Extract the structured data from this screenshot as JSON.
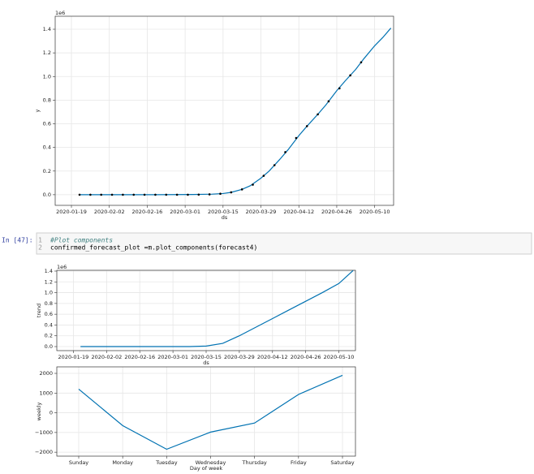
{
  "notebook": {
    "prompt": "In [47]:",
    "code_lines": [
      {
        "number": 1,
        "text": "#Plot components"
      },
      {
        "number": 2,
        "text": "confirmed_forecast_plot =m.plot_components(forecast4)"
      }
    ]
  },
  "chart_data": [
    {
      "type": "line",
      "offset_text": "1e6",
      "xlabel": "ds",
      "ylabel": "y",
      "grid": true,
      "xlim": [
        "2020-01-13",
        "2020-05-17"
      ],
      "ylim": [
        -0.09,
        1.51
      ],
      "xticks": [
        "2020-01-19",
        "2020-02-02",
        "2020-02-16",
        "2020-03-01",
        "2020-03-15",
        "2020-03-29",
        "2020-04-12",
        "2020-04-26",
        "2020-05-10"
      ],
      "yticks": [
        {
          "value": 0,
          "label": "0.0"
        },
        0.2,
        0.4,
        0.6,
        0.8,
        {
          "value": 1,
          "label": "1.0"
        },
        1.2,
        1.4
      ],
      "series": [
        {
          "type": "line",
          "color": "#0072B2",
          "x": [
            "2020-01-22",
            "2020-02-05",
            "2020-02-19",
            "2020-03-04",
            "2020-03-11",
            "2020-03-15",
            "2020-03-18",
            "2020-03-22",
            "2020-03-25",
            "2020-03-29",
            "2020-04-01",
            "2020-04-05",
            "2020-04-08",
            "2020-04-12",
            "2020-04-15",
            "2020-04-19",
            "2020-04-22",
            "2020-04-26",
            "2020-04-29",
            "2020-05-03",
            "2020-05-06",
            "2020-05-10",
            "2020-05-13",
            "2020-05-16"
          ],
          "values": [
            0,
            0,
            0,
            0.002,
            0.005,
            0.01,
            0.02,
            0.045,
            0.075,
            0.14,
            0.2,
            0.3,
            0.38,
            0.5,
            0.58,
            0.68,
            0.76,
            0.88,
            0.96,
            1.06,
            1.15,
            1.26,
            1.33,
            1.41
          ]
        },
        {
          "type": "scatter",
          "color": "#000000",
          "x": [
            "2020-01-22",
            "2020-01-26",
            "2020-01-30",
            "2020-02-03",
            "2020-02-07",
            "2020-02-11",
            "2020-02-15",
            "2020-02-19",
            "2020-02-23",
            "2020-02-27",
            "2020-03-02",
            "2020-03-06",
            "2020-03-10",
            "2020-03-14",
            "2020-03-18",
            "2020-03-22",
            "2020-03-26",
            "2020-03-30",
            "2020-04-03",
            "2020-04-07",
            "2020-04-11",
            "2020-04-15",
            "2020-04-19",
            "2020-04-23",
            "2020-04-27",
            "2020-05-01",
            "2020-05-05"
          ],
          "values": [
            0,
            0,
            0,
            0,
            0,
            0,
            0,
            0,
            0,
            0,
            0,
            0.001,
            0.003,
            0.008,
            0.02,
            0.045,
            0.085,
            0.16,
            0.25,
            0.36,
            0.48,
            0.58,
            0.68,
            0.79,
            0.9,
            1.01,
            1.12
          ]
        }
      ]
    },
    {
      "type": "line",
      "offset_text": "1e6",
      "xlabel": "ds",
      "ylabel": "trend",
      "grid": true,
      "xlim": [
        "2020-01-12",
        "2020-05-17"
      ],
      "ylim": [
        -0.075,
        1.415
      ],
      "xticks": [
        "2020-01-19",
        "2020-02-02",
        "2020-02-16",
        "2020-03-01",
        "2020-03-15",
        "2020-03-29",
        "2020-04-12",
        "2020-04-26",
        "2020-05-10"
      ],
      "yticks": [
        {
          "value": 0,
          "label": "0.0"
        },
        0.2,
        0.4,
        0.6,
        0.8,
        {
          "value": 1,
          "label": "1.0"
        },
        1.2,
        1.4
      ],
      "series": [
        {
          "type": "line",
          "color": "#0072B2",
          "x": [
            "2020-01-22",
            "2020-03-08",
            "2020-03-15",
            "2020-03-22",
            "2020-03-29",
            "2020-04-05",
            "2020-04-12",
            "2020-04-19",
            "2020-04-26",
            "2020-05-03",
            "2020-05-10",
            "2020-05-16"
          ],
          "values": [
            0,
            0,
            0.01,
            0.06,
            0.2,
            0.36,
            0.52,
            0.68,
            0.84,
            1.0,
            1.17,
            1.41
          ]
        }
      ]
    },
    {
      "type": "line",
      "xlabel": "Day of week",
      "ylabel": "weekly",
      "grid": true,
      "categories": [
        "Sunday",
        "Monday",
        "Tuesday",
        "Wednesday",
        "Thursday",
        "Friday",
        "Saturday"
      ],
      "ylim": [
        -2200,
        2330
      ],
      "yticks": [
        {
          "value": -2000,
          "label": "−2000"
        },
        {
          "value": -1000,
          "label": "−1000"
        },
        0,
        1000,
        2000
      ],
      "series": [
        {
          "type": "line",
          "color": "#0072B2",
          "values": [
            1200,
            -650,
            -1850,
            -980,
            -520,
            930,
            1900
          ]
        }
      ]
    }
  ]
}
